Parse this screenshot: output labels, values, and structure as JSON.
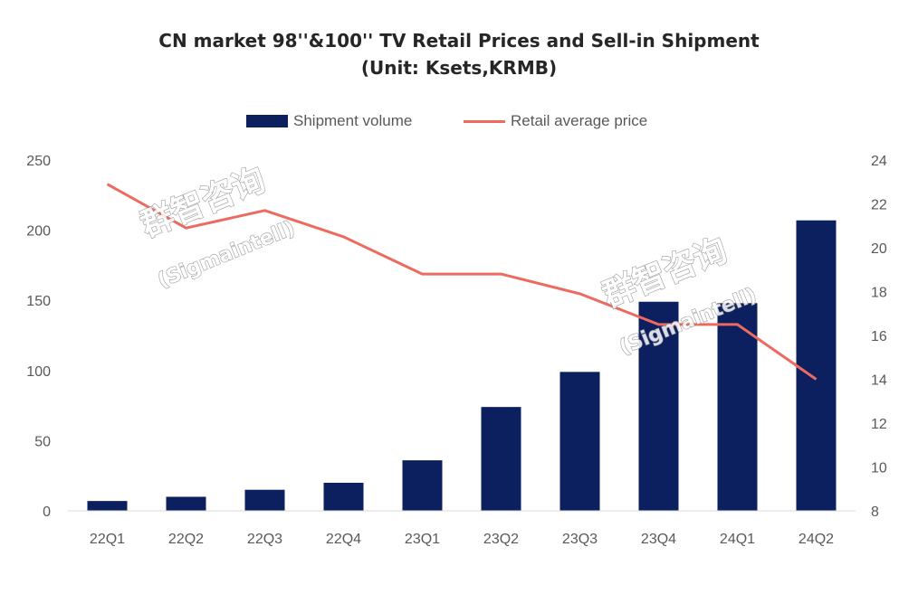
{
  "title_line1": "CN market 98''&100'' TV Retail Prices and Sell-in Shipment",
  "title_line2": "(Unit: Ksets,KRMB)",
  "watermark": {
    "cn": "群智咨询",
    "en": "(Sigmaintell)"
  },
  "chart_data": {
    "type": "bar",
    "categories": [
      "22Q1",
      "22Q2",
      "22Q3",
      "22Q4",
      "23Q1",
      "23Q2",
      "23Q3",
      "23Q4",
      "24Q1",
      "24Q2"
    ],
    "series": [
      {
        "name": "Shipment volume",
        "type": "bar",
        "axis": "left",
        "color": "#0c1f5e",
        "values": [
          7,
          10,
          15,
          20,
          36,
          74,
          99,
          149,
          148,
          207
        ]
      },
      {
        "name": "Retail average price",
        "type": "line",
        "axis": "right",
        "color": "#ed6a5f",
        "values": [
          22.9,
          20.9,
          21.7,
          20.5,
          18.8,
          18.8,
          17.9,
          16.5,
          16.5,
          14.0
        ]
      }
    ],
    "y_left": {
      "min": 0,
      "max": 250,
      "ticks": [
        0,
        50,
        100,
        150,
        200,
        250
      ]
    },
    "y_right": {
      "min": 8,
      "max": 24,
      "ticks": [
        8,
        10,
        12,
        14,
        16,
        18,
        20,
        22,
        24
      ]
    },
    "legend_position": "top",
    "grid": false
  }
}
